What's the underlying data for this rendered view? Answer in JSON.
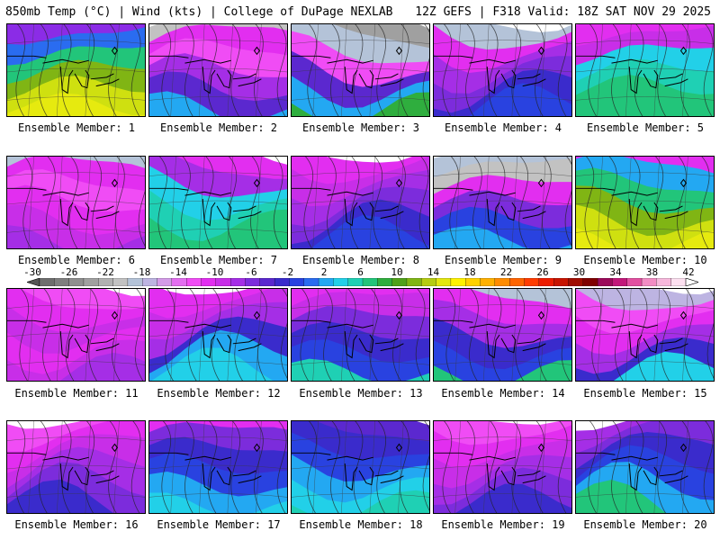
{
  "header": {
    "left": "850mb Temp (°C) | Wind (kts) | College of DuPage NEXLAB",
    "right": "12Z GEFS | F318 Valid: 18Z SAT NOV 29 2025"
  },
  "colorbar": {
    "tick_labels": [
      "-30",
      "-26",
      "-22",
      "-18",
      "-14",
      "-10",
      "-6",
      "-2",
      "2",
      "6",
      "10",
      "14",
      "18",
      "22",
      "26",
      "30",
      "34",
      "38",
      "42"
    ],
    "colors": [
      "#6e6e6e",
      "#7f7f7f",
      "#8f8f8f",
      "#a0a0a0",
      "#b1b1b1",
      "#c2c2c2",
      "#b4c3d8",
      "#bdb4e2",
      "#d39be8",
      "#e36ef0",
      "#f04cf5",
      "#e22ef0",
      "#c82ee8",
      "#a52ee6",
      "#7c2cdc",
      "#5b28cf",
      "#3a2bcc",
      "#2942e0",
      "#2a6cf0",
      "#23a8f2",
      "#22d0e8",
      "#1fd0b4",
      "#22c57a",
      "#2fae3e",
      "#4fa11a",
      "#80b514",
      "#b5cc12",
      "#e3e60f",
      "#fff200",
      "#ffd200",
      "#ffb000",
      "#ff8c00",
      "#ff6400",
      "#ff3c00",
      "#ee1c00",
      "#c81400",
      "#a00c00",
      "#800000",
      "#9b0a5a",
      "#c2187a",
      "#e24fa0",
      "#f28cc4",
      "#f7b8dc",
      "#fce0f0"
    ]
  },
  "panels": [
    {
      "label": "Ensemble Member: 1",
      "palette": [
        "#8b2ce6",
        "#2a6cf0",
        "#22c57a",
        "#80b514",
        "#cfe010",
        "#e6ea0f"
      ]
    },
    {
      "label": "Ensemble Member: 2",
      "palette": [
        "#c2c2c2",
        "#e22ef0",
        "#f04cf5",
        "#a52ee6",
        "#5b28cf",
        "#23a8f2"
      ]
    },
    {
      "label": "Ensemble Member: 3",
      "palette": [
        "#a0a0a0",
        "#b4c3d8",
        "#f04cf5",
        "#5b28cf",
        "#23a8f2",
        "#2fae3e"
      ]
    },
    {
      "label": "Ensemble Member: 4",
      "palette": [
        "#b4c3d8",
        "#e22ef0",
        "#a52ee6",
        "#7c2cdc",
        "#3a2bcc",
        "#2942e0"
      ]
    },
    {
      "label": "Ensemble Member: 5",
      "palette": [
        "#e22ef0",
        "#c82ee8",
        "#22d0e8",
        "#1fd0b4",
        "#22c57a",
        "#22c57a"
      ]
    },
    {
      "label": "Ensemble Member: 6",
      "palette": [
        "#b4c3d8",
        "#e22ef0",
        "#f04cf5",
        "#e22ef0",
        "#c82ee8",
        "#a52ee6"
      ]
    },
    {
      "label": "Ensemble Member: 7",
      "palette": [
        "#e22ef0",
        "#a52ee6",
        "#22d0e8",
        "#1fd0b4",
        "#22c57a",
        "#22c57a"
      ]
    },
    {
      "label": "Ensemble Member: 8",
      "palette": [
        "#e22ef0",
        "#c82ee8",
        "#a52ee6",
        "#7c2cdc",
        "#3a2bcc",
        "#2942e0"
      ]
    },
    {
      "label": "Ensemble Member: 9",
      "palette": [
        "#b4c3d8",
        "#c2c2c2",
        "#e22ef0",
        "#7c2cdc",
        "#2942e0",
        "#23a8f2"
      ]
    },
    {
      "label": "Ensemble Member: 10",
      "palette": [
        "#e22ef0",
        "#23a8f2",
        "#22c57a",
        "#80b514",
        "#cfe010",
        "#e6ea0f"
      ]
    },
    {
      "label": "Ensemble Member: 11",
      "palette": [
        "#f04cf5",
        "#e22ef0",
        "#c82ee8",
        "#e22ef0",
        "#c82ee8",
        "#a52ee6"
      ]
    },
    {
      "label": "Ensemble Member: 12",
      "palette": [
        "#e22ef0",
        "#c82ee8",
        "#a52ee6",
        "#3a2bcc",
        "#23a8f2",
        "#22d0e8"
      ]
    },
    {
      "label": "Ensemble Member: 13",
      "palette": [
        "#e22ef0",
        "#c82ee8",
        "#7c2cdc",
        "#3a2bcc",
        "#2942e0",
        "#1fd0b4"
      ]
    },
    {
      "label": "Ensemble Member: 14",
      "palette": [
        "#b4c3d8",
        "#e22ef0",
        "#a52ee6",
        "#3a2bcc",
        "#2942e0",
        "#22c57a"
      ]
    },
    {
      "label": "Ensemble Member: 15",
      "palette": [
        "#bdb4e2",
        "#f04cf5",
        "#e22ef0",
        "#a52ee6",
        "#3a2bcc",
        "#22d0e8"
      ]
    },
    {
      "label": "Ensemble Member: 16",
      "palette": [
        "#f04cf5",
        "#e22ef0",
        "#c82ee8",
        "#a52ee6",
        "#7c2cdc",
        "#3a2bcc"
      ]
    },
    {
      "label": "Ensemble Member: 17",
      "palette": [
        "#e22ef0",
        "#7c2cdc",
        "#3a2bcc",
        "#2942e0",
        "#23a8f2",
        "#22d0e8"
      ]
    },
    {
      "label": "Ensemble Member: 18",
      "palette": [
        "#5b28cf",
        "#3a2bcc",
        "#2942e0",
        "#23a8f2",
        "#22d0e8",
        "#1fd0b4"
      ]
    },
    {
      "label": "Ensemble Member: 19",
      "palette": [
        "#f04cf5",
        "#e22ef0",
        "#c82ee8",
        "#a52ee6",
        "#7c2cdc",
        "#3a2bcc"
      ]
    },
    {
      "label": "Ensemble Member: 20",
      "palette": [
        "#a52ee6",
        "#7c2cdc",
        "#3a2bcc",
        "#2942e0",
        "#23a8f2",
        "#22c57a"
      ]
    }
  ]
}
